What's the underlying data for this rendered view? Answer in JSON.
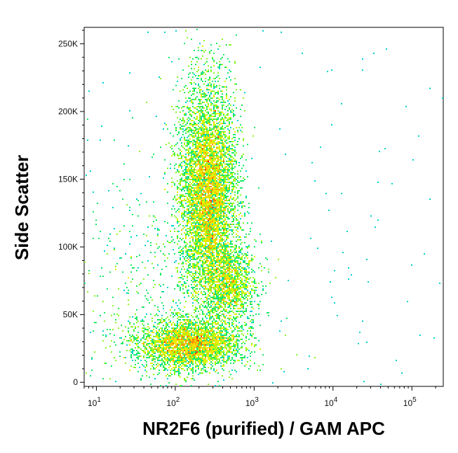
{
  "chart_data": {
    "type": "scatter",
    "subtype": "flow-cytometry density dot plot",
    "title": "",
    "xlabel": "NR2F6 (purified) / GAM APC",
    "ylabel": "Side Scatter",
    "x_scale": "log",
    "xlim": [
      7,
      250000
    ],
    "ylim": [
      -3000,
      262144
    ],
    "x_ticks": [
      {
        "value": 10,
        "base": "10",
        "exp": "1"
      },
      {
        "value": 100,
        "base": "10",
        "exp": "2"
      },
      {
        "value": 1000,
        "base": "10",
        "exp": "3"
      },
      {
        "value": 10000,
        "base": "10",
        "exp": "4"
      },
      {
        "value": 100000,
        "base": "10",
        "exp": "5"
      }
    ],
    "y_ticks": [
      {
        "value": 0,
        "label": "0"
      },
      {
        "value": 50000,
        "label": "50K"
      },
      {
        "value": 100000,
        "label": "100K"
      },
      {
        "value": 150000,
        "label": "150K"
      },
      {
        "value": 200000,
        "label": "200K"
      },
      {
        "value": 250000,
        "label": "250K"
      }
    ],
    "grid": false,
    "legend": "none",
    "color_scale": [
      "#0000ff",
      "#00c8ff",
      "#00e676",
      "#c8ff00",
      "#ffe000",
      "#ff8000",
      "#ff0000"
    ],
    "populations": [
      {
        "x_center": 260,
        "y_center": 140000,
        "x_spread_decades": 0.18,
        "y_spread": 40000,
        "weight": 0.55
      },
      {
        "x_center": 500,
        "y_center": 72000,
        "x_spread_decades": 0.16,
        "y_spread": 15000,
        "weight": 0.12
      },
      {
        "x_center": 150,
        "y_center": 28000,
        "x_spread_decades": 0.32,
        "y_spread": 9000,
        "weight": 0.28
      },
      {
        "x_center": 60,
        "y_center": 52000,
        "x_spread_decades": 0.6,
        "y_spread": 60000,
        "weight": 0.05
      }
    ]
  }
}
